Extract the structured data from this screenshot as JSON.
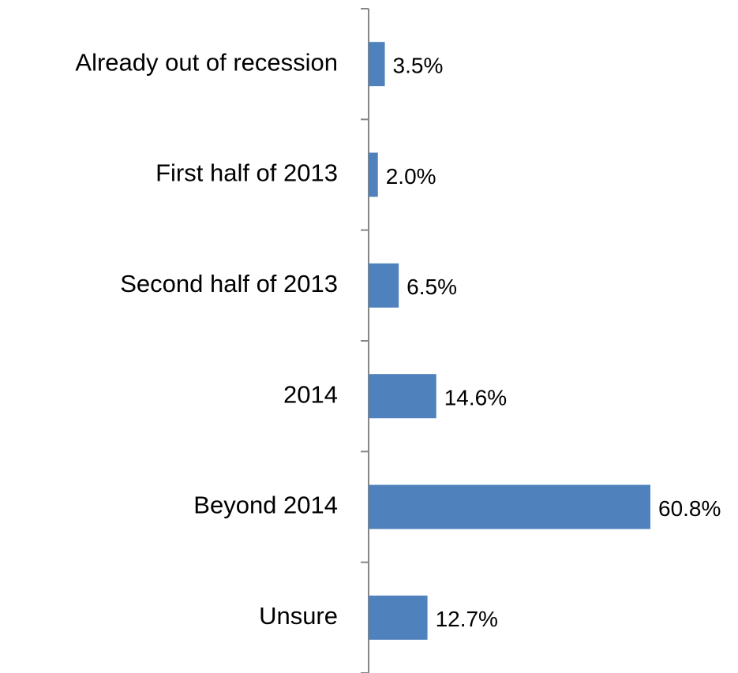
{
  "chart_data": {
    "type": "bar",
    "orientation": "horizontal",
    "categories": [
      "Already out of recession",
      "First half of 2013",
      "Second half of 2013",
      "2014",
      "Beyond 2014",
      "Unsure"
    ],
    "values": [
      3.5,
      2.0,
      6.5,
      14.6,
      60.8,
      12.7
    ],
    "value_labels": [
      "3.5%",
      "2.0%",
      "6.5%",
      "14.6%",
      "60.8%",
      "12.7%"
    ],
    "color": "#4f81bd"
  }
}
